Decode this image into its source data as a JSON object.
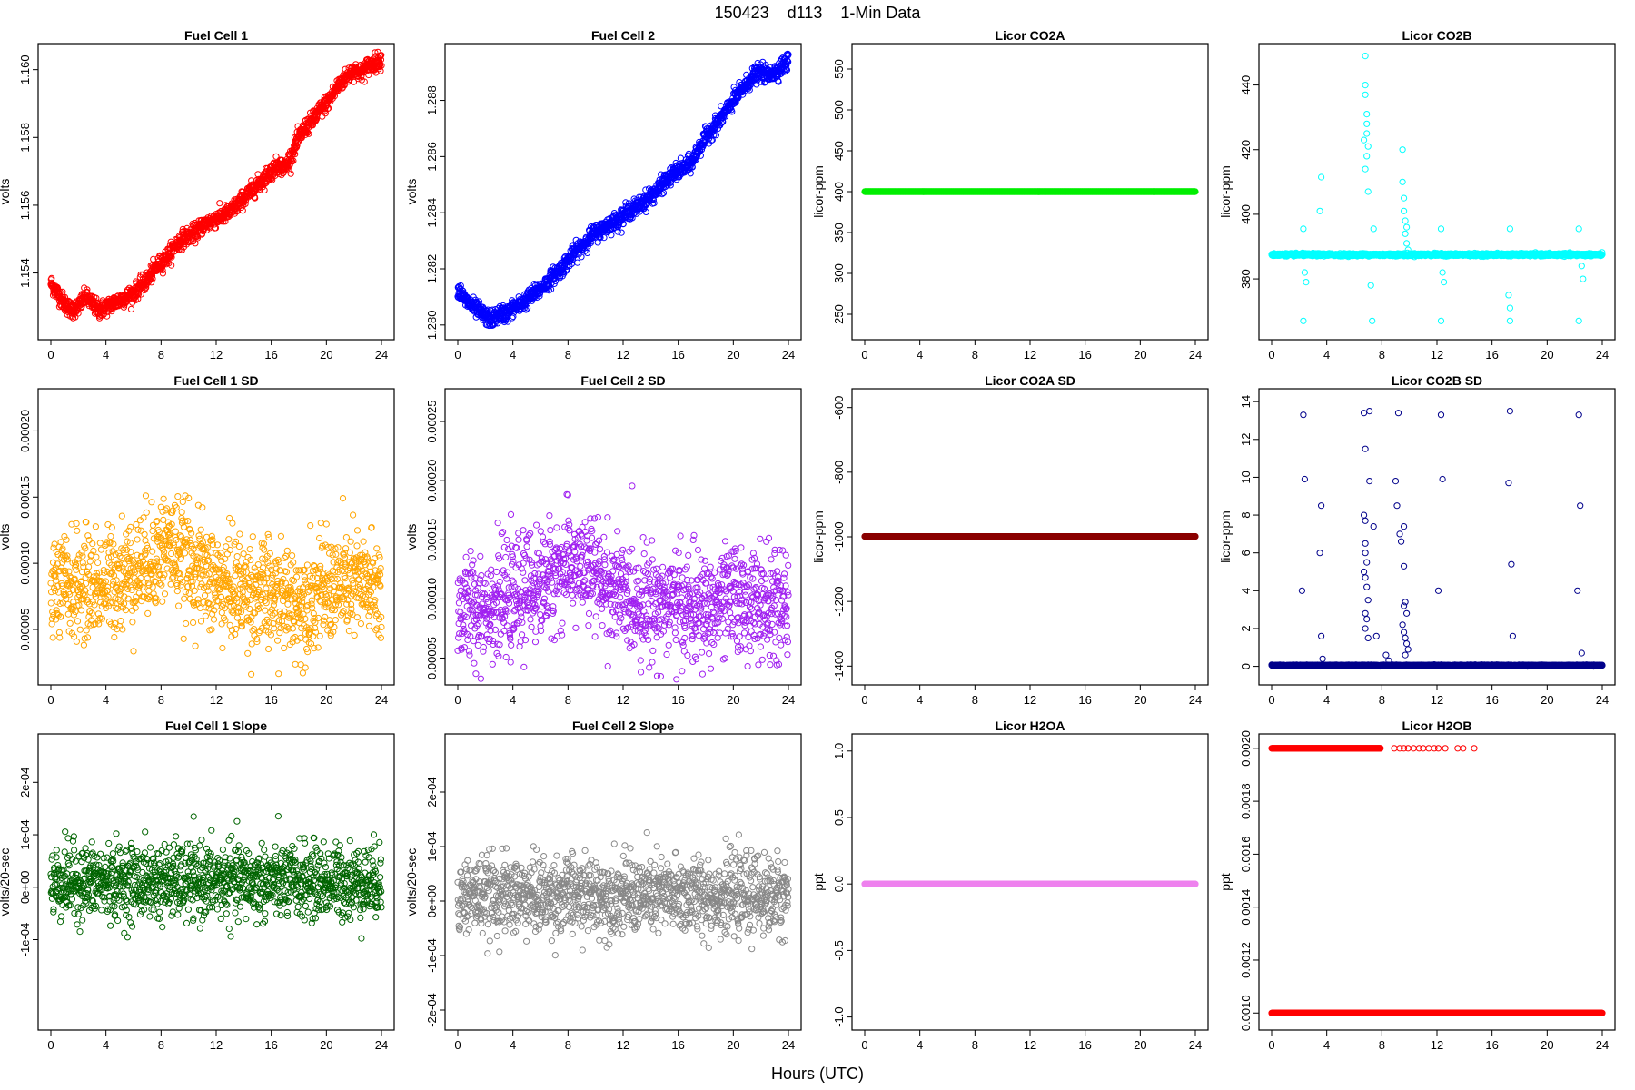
{
  "figure": {
    "title": "150423    d113    1-Min Data",
    "xlabel": "Hours (UTC)"
  },
  "chart_data": [
    {
      "type": "scatter",
      "title": "Fuel Cell 1",
      "ylabel": "volts",
      "color": "#ff0000",
      "fill": false,
      "xlim": [
        0,
        24
      ],
      "xticks": [
        0,
        4,
        8,
        12,
        16,
        20,
        24
      ],
      "ylim": [
        1.1523,
        1.1605
      ],
      "yticks": [
        1.154,
        1.156,
        1.158,
        1.16
      ],
      "ytick_labels": [
        "1.154",
        "1.156",
        "1.158",
        "1.160"
      ],
      "series": [
        {
          "x": [
            0,
            0.5,
            1,
            1.5,
            2,
            2.5,
            3,
            3.5,
            4,
            4.5,
            5,
            5.5,
            6,
            6.5,
            7,
            7.5,
            8,
            8.5,
            9,
            9.5,
            10,
            10.5,
            11,
            11.5,
            12,
            12.5,
            13,
            13.5,
            14,
            14.5,
            15,
            15.5,
            16,
            16.5,
            17,
            17.5,
            18,
            18.5,
            19,
            19.5,
            20,
            20.5,
            21,
            21.5,
            22,
            22.5,
            23,
            23.5,
            24
          ],
          "y": [
            1.1537,
            1.1534,
            1.1531,
            1.1529,
            1.153,
            1.1533,
            1.1531,
            1.1529,
            1.153,
            1.1531,
            1.1532,
            1.1533,
            1.1534,
            1.1536,
            1.1538,
            1.1541,
            1.1543,
            1.1545,
            1.1548,
            1.155,
            1.1551,
            1.1552,
            1.1554,
            1.1555,
            1.1556,
            1.1557,
            1.1558,
            1.156,
            1.1562,
            1.1564,
            1.1566,
            1.1568,
            1.157,
            1.1572,
            1.1571,
            1.1575,
            1.158,
            1.1583,
            1.1585,
            1.1588,
            1.159,
            1.1593,
            1.1596,
            1.1598,
            1.16,
            1.1599,
            1.1601,
            1.1602,
            1.1603
          ],
          "noise": 0.00025,
          "density": 60
        }
      ]
    },
    {
      "type": "scatter",
      "title": "Fuel Cell 2",
      "ylabel": "volts",
      "color": "#0000ff",
      "fill": false,
      "xlim": [
        0,
        24
      ],
      "xticks": [
        0,
        4,
        8,
        12,
        16,
        20,
        24
      ],
      "ylim": [
        1.2798,
        1.2897
      ],
      "yticks": [
        1.28,
        1.282,
        1.284,
        1.286,
        1.288
      ],
      "ytick_labels": [
        "1.280",
        "1.282",
        "1.284",
        "1.286",
        "1.288"
      ],
      "series": [
        {
          "x": [
            0,
            0.5,
            1,
            1.5,
            2,
            2.5,
            3,
            3.5,
            4,
            4.5,
            5,
            5.5,
            6,
            6.5,
            7,
            7.5,
            8,
            8.5,
            9,
            9.5,
            10,
            10.5,
            11,
            11.5,
            12,
            12.5,
            13,
            13.5,
            14,
            14.5,
            15,
            15.5,
            16,
            16.5,
            17,
            17.5,
            18,
            18.5,
            19,
            19.5,
            20,
            20.5,
            21,
            21.5,
            22,
            22.5,
            23,
            23.5,
            24
          ],
          "y": [
            1.2813,
            1.2809,
            1.2807,
            1.2805,
            1.2803,
            1.2802,
            1.2804,
            1.2804,
            1.2806,
            1.2807,
            1.2809,
            1.2811,
            1.2813,
            1.2815,
            1.2818,
            1.282,
            1.2823,
            1.2826,
            1.2828,
            1.2831,
            1.2833,
            1.2834,
            1.2836,
            1.2837,
            1.2839,
            1.2841,
            1.2842,
            1.2844,
            1.2846,
            1.2848,
            1.2851,
            1.2853,
            1.2855,
            1.2856,
            1.2858,
            1.2863,
            1.2867,
            1.287,
            1.2873,
            1.2876,
            1.288,
            1.2883,
            1.2886,
            1.2889,
            1.289,
            1.2889,
            1.289,
            1.2892,
            1.2894
          ],
          "noise": 0.0003,
          "density": 60
        }
      ]
    },
    {
      "type": "scatter",
      "title": "Licor CO2A",
      "ylabel": "licor-ppm",
      "color": "#00ee00",
      "fill": true,
      "xlim": [
        0,
        24
      ],
      "xticks": [
        0,
        4,
        8,
        12,
        16,
        20,
        24
      ],
      "ylim": [
        230,
        570
      ],
      "yticks": [
        250,
        300,
        350,
        400,
        450,
        500,
        550
      ],
      "ytick_labels": [
        "250",
        "300",
        "350",
        "400",
        "450",
        "500",
        "550"
      ],
      "series": [
        {
          "x": [
            0,
            24
          ],
          "y": [
            400,
            400
          ],
          "noise": 0,
          "density": 80
        }
      ]
    },
    {
      "type": "scatter",
      "title": "Licor CO2B",
      "ylabel": "licor-ppm",
      "color": "#00ffff",
      "fill": false,
      "xlim": [
        0,
        24
      ],
      "xticks": [
        0,
        4,
        8,
        12,
        16,
        20,
        24
      ],
      "ylim": [
        364,
        450
      ],
      "yticks": [
        380,
        400,
        420,
        440
      ],
      "ytick_labels": [
        "380",
        "400",
        "420",
        "440"
      ],
      "series": [
        {
          "x": [
            0,
            24
          ],
          "y": [
            387.5,
            387.5
          ],
          "noise": 0.4,
          "density": 70
        }
      ],
      "extra_points": [
        [
          2.3,
          395.5
        ],
        [
          2.3,
          367
        ],
        [
          2.4,
          382
        ],
        [
          2.5,
          379
        ],
        [
          3.6,
          411.5
        ],
        [
          3.5,
          401
        ],
        [
          6.8,
          449
        ],
        [
          6.8,
          440
        ],
        [
          6.8,
          437
        ],
        [
          6.9,
          431
        ],
        [
          6.9,
          428
        ],
        [
          6.9,
          425
        ],
        [
          6.7,
          423
        ],
        [
          7.0,
          421
        ],
        [
          6.9,
          418
        ],
        [
          6.8,
          414
        ],
        [
          7.0,
          407
        ],
        [
          7.4,
          395.5
        ],
        [
          7.3,
          367
        ],
        [
          7.2,
          378
        ],
        [
          9.5,
          420
        ],
        [
          9.5,
          410
        ],
        [
          9.6,
          405
        ],
        [
          9.6,
          401
        ],
        [
          9.7,
          398
        ],
        [
          9.8,
          396
        ],
        [
          9.7,
          394
        ],
        [
          9.8,
          391
        ],
        [
          9.9,
          389
        ],
        [
          12.3,
          395.5
        ],
        [
          12.3,
          367
        ],
        [
          12.4,
          382
        ],
        [
          12.5,
          379
        ],
        [
          17.3,
          395.5
        ],
        [
          17.3,
          367
        ],
        [
          17.2,
          375
        ],
        [
          17.3,
          371
        ],
        [
          22.3,
          395.5
        ],
        [
          22.3,
          367
        ],
        [
          22.5,
          384
        ],
        [
          22.6,
          380
        ]
      ]
    },
    {
      "type": "scatter",
      "title": "Fuel Cell 1 SD",
      "ylabel": "volts",
      "color": "#ffa500",
      "fill": false,
      "xlim": [
        0,
        24
      ],
      "xticks": [
        0,
        4,
        8,
        12,
        16,
        20,
        24
      ],
      "ylim": [
        1.5e-05,
        0.000225
      ],
      "yticks": [
        5e-05,
        0.0001,
        0.00015,
        0.0002
      ],
      "ytick_labels": [
        "0.00005",
        "0.00010",
        "0.00015",
        "0.00020"
      ],
      "series": [
        {
          "x": [
            0,
            4,
            7,
            8.5,
            10,
            12,
            16,
            18,
            20,
            22,
            24
          ],
          "y": [
            8e-05,
            8.5e-05,
            0.0001,
            0.000115,
            0.0001,
            8.5e-05,
            7.5e-05,
            7e-05,
            8e-05,
            8.5e-05,
            8e-05
          ],
          "noise": 4e-05,
          "density": 55
        }
      ]
    },
    {
      "type": "scatter",
      "title": "Fuel Cell 2 SD",
      "ylabel": "volts",
      "color": "#a020f0",
      "fill": false,
      "xlim": [
        0,
        24
      ],
      "xticks": [
        0,
        4,
        8,
        12,
        16,
        20,
        24
      ],
      "ylim": [
        3.5e-05,
        0.00027
      ],
      "yticks": [
        5e-05,
        0.0001,
        0.00015,
        0.0002,
        0.00025
      ],
      "ytick_labels": [
        "0.00005",
        "0.00010",
        "0.00015",
        "0.00020",
        "0.00025"
      ],
      "series": [
        {
          "x": [
            0,
            4,
            7,
            8.5,
            10,
            12,
            16,
            18,
            20,
            22,
            24
          ],
          "y": [
            9e-05,
            0.0001,
            0.00012,
            0.00013,
            0.00012,
            0.0001,
            9.5e-05,
            9e-05,
            0.0001,
            9.5e-05,
            9e-05
          ],
          "noise": 4.5e-05,
          "density": 55
        }
      ]
    },
    {
      "type": "scatter",
      "title": "Licor CO2A SD",
      "ylabel": "licor-ppm",
      "color": "#8b0000",
      "fill": true,
      "xlim": [
        0,
        24
      ],
      "xticks": [
        0,
        4,
        8,
        12,
        16,
        20,
        24
      ],
      "ylim": [
        -1430,
        -570
      ],
      "yticks": [
        -1400,
        -1200,
        -1000,
        -800,
        -600
      ],
      "ytick_labels": [
        "-1400",
        "-1200",
        "-1000",
        "-800",
        "-600"
      ],
      "series": [
        {
          "x": [
            0,
            24
          ],
          "y": [
            -999,
            -999
          ],
          "noise": 0,
          "density": 80
        }
      ]
    },
    {
      "type": "scatter",
      "title": "Licor CO2B SD",
      "ylabel": "licor-ppm",
      "color": "#00008b",
      "fill": false,
      "xlim": [
        0,
        24
      ],
      "xticks": [
        0,
        4,
        8,
        12,
        16,
        20,
        24
      ],
      "ylim": [
        -0.5,
        14.2
      ],
      "yticks": [
        0,
        2,
        4,
        6,
        8,
        10,
        12,
        14
      ],
      "ytick_labels": [
        "0",
        "2",
        "4",
        "6",
        "8",
        "10",
        "12",
        "14"
      ],
      "series": [
        {
          "x": [
            0,
            24
          ],
          "y": [
            0.05,
            0.05
          ],
          "noise": 0.03,
          "density": 70
        }
      ],
      "extra_points": [
        [
          2.2,
          4
        ],
        [
          2.3,
          13.3
        ],
        [
          2.4,
          9.9
        ],
        [
          3.6,
          8.5
        ],
        [
          3.5,
          6
        ],
        [
          3.6,
          1.6
        ],
        [
          3.7,
          0.4
        ],
        [
          6.7,
          13.4
        ],
        [
          6.8,
          11.5
        ],
        [
          6.7,
          8
        ],
        [
          6.8,
          7.7
        ],
        [
          6.8,
          6.5
        ],
        [
          6.8,
          6
        ],
        [
          6.9,
          5.5
        ],
        [
          6.7,
          5
        ],
        [
          6.8,
          4.7
        ],
        [
          6.9,
          4.2
        ],
        [
          7.0,
          3.5
        ],
        [
          6.8,
          2.8
        ],
        [
          6.9,
          2.5
        ],
        [
          6.8,
          2
        ],
        [
          7.0,
          1.5
        ],
        [
          7.1,
          13.5
        ],
        [
          7.1,
          9.8
        ],
        [
          7.4,
          7.4
        ],
        [
          7.6,
          1.6
        ],
        [
          8.3,
          0.6
        ],
        [
          8.5,
          0.3
        ],
        [
          9.2,
          13.4
        ],
        [
          9.0,
          9.8
        ],
        [
          9.1,
          8.5
        ],
        [
          9.3,
          7
        ],
        [
          9.4,
          6.6
        ],
        [
          9.6,
          7.4
        ],
        [
          9.6,
          5.3
        ],
        [
          9.6,
          3.2
        ],
        [
          9.7,
          3.4
        ],
        [
          9.8,
          2.8
        ],
        [
          9.5,
          2.2
        ],
        [
          9.6,
          1.8
        ],
        [
          9.7,
          1.5
        ],
        [
          9.8,
          1.2
        ],
        [
          9.9,
          0.9
        ],
        [
          9.7,
          0.6
        ],
        [
          12.1,
          4
        ],
        [
          12.3,
          13.3
        ],
        [
          12.4,
          9.9
        ],
        [
          17.2,
          9.7
        ],
        [
          17.3,
          13.5
        ],
        [
          17.4,
          5.4
        ],
        [
          17.5,
          1.6
        ],
        [
          22.2,
          4
        ],
        [
          22.3,
          13.3
        ],
        [
          22.4,
          8.5
        ],
        [
          22.5,
          0.7
        ]
      ]
    },
    {
      "type": "scatter",
      "title": "Fuel Cell 1 Slope",
      "ylabel": "volts/20-sec",
      "color": "#006400",
      "fill": false,
      "xlim": [
        0,
        24
      ],
      "xticks": [
        0,
        4,
        8,
        12,
        16,
        20,
        24
      ],
      "ylim": [
        -0.000255,
        0.000275
      ],
      "yticks": [
        -0.0001,
        0,
        0.0001,
        0.0002
      ],
      "ytick_labels": [
        "-1e-04",
        "0e+00",
        "1e-04",
        "2e-04"
      ],
      "series": [
        {
          "x": [
            0,
            24
          ],
          "y": [
            1e-05,
            1e-05
          ],
          "noise": 7e-05,
          "density": 55
        }
      ]
    },
    {
      "type": "scatter",
      "title": "Fuel Cell 2 Slope",
      "ylabel": "volts/20-sec",
      "color": "#888888",
      "fill": false,
      "xlim": [
        0,
        24
      ],
      "xticks": [
        0,
        4,
        8,
        12,
        16,
        20,
        24
      ],
      "ylim": [
        -0.00022,
        0.00029
      ],
      "yticks": [
        -0.0002,
        -0.0001,
        0,
        0.0001,
        0.0002
      ],
      "ytick_labels": [
        "-2e-04",
        "-1e-04",
        "0e+00",
        "1e-04",
        "2e-04"
      ],
      "series": [
        {
          "x": [
            0,
            24
          ],
          "y": [
            1e-05,
            1e-05
          ],
          "noise": 7e-05,
          "density": 55
        }
      ]
    },
    {
      "type": "scatter",
      "title": "Licor H2OA",
      "ylabel": "ppt",
      "color": "#ee82ee",
      "fill": true,
      "xlim": [
        0,
        24
      ],
      "xticks": [
        0,
        4,
        8,
        12,
        16,
        20,
        24
      ],
      "ylim": [
        -1.03,
        1.06
      ],
      "yticks": [
        -1.0,
        -0.5,
        0.0,
        0.5,
        1.0
      ],
      "ytick_labels": [
        "-1.0",
        "-0.5",
        "0.0",
        "0.5",
        "1.0"
      ],
      "series": [
        {
          "x": [
            0,
            24
          ],
          "y": [
            0,
            0
          ],
          "noise": 0,
          "density": 80
        }
      ]
    },
    {
      "type": "scatter",
      "title": "Licor H2OB",
      "ylabel": "ppt",
      "color": "#ff0000",
      "fill": false,
      "xlim": [
        0,
        24
      ],
      "xticks": [
        0,
        4,
        8,
        12,
        16,
        20,
        24
      ],
      "ylim": [
        0.00097,
        0.00202
      ],
      "yticks": [
        0.001,
        0.0012,
        0.0014,
        0.0016,
        0.0018,
        0.002
      ],
      "ytick_labels": [
        "0.0010",
        "0.0012",
        "0.0014",
        "0.0016",
        "0.0018",
        "0.0020"
      ],
      "series": [
        {
          "x": [
            0,
            24
          ],
          "y": [
            0.001,
            0.001
          ],
          "noise": 0,
          "density": 75
        },
        {
          "x": [
            0,
            7.9
          ],
          "y": [
            0.002,
            0.002
          ],
          "noise": 0,
          "density": 45
        }
      ],
      "extra_points": [
        [
          8.9,
          0.002
        ],
        [
          9.3,
          0.002
        ],
        [
          9.6,
          0.002
        ],
        [
          9.9,
          0.002
        ],
        [
          10.3,
          0.002
        ],
        [
          10.7,
          0.002
        ],
        [
          11.0,
          0.002
        ],
        [
          11.4,
          0.002
        ],
        [
          11.8,
          0.002
        ],
        [
          12.1,
          0.002
        ],
        [
          12.6,
          0.002
        ],
        [
          13.5,
          0.002
        ],
        [
          13.9,
          0.002
        ],
        [
          14.7,
          0.002
        ]
      ]
    }
  ]
}
